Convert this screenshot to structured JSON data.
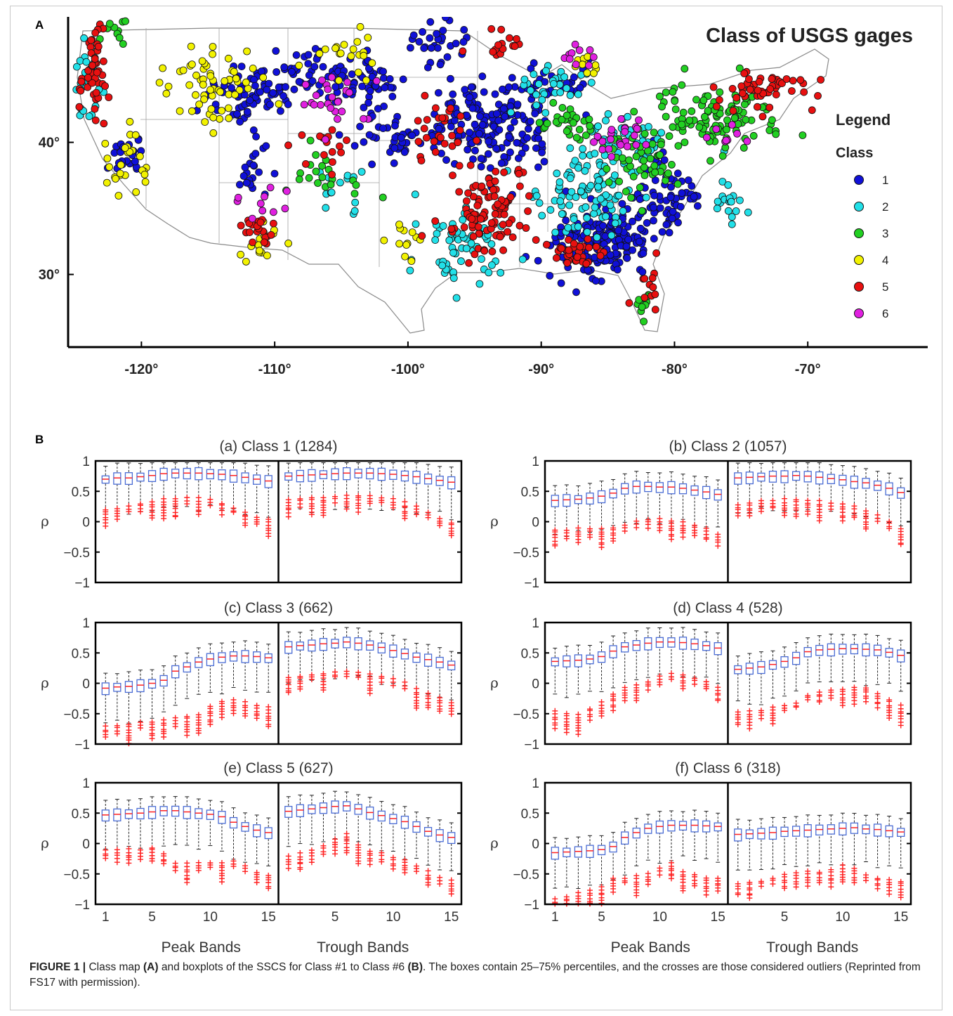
{
  "panel_a_letter": "A",
  "panel_b_letter": "B",
  "caption": {
    "label": "FIGURE 1 |",
    "part1": " Class map ",
    "bold_a": "(A)",
    "part2": " and boxplots of the SSCS for Class #1 to Class #6 ",
    "bold_b": "(B)",
    "part3": ". The boxes contain 25–75% percentiles, and the crosses are those considered outliers (Reprinted from FS17 with permission)."
  },
  "chart_data": [
    {
      "type": "scatter",
      "title": "Class of USGS gages",
      "xlabel": "",
      "ylabel": "",
      "xlim": [
        -125.5,
        -61
      ],
      "ylim": [
        24.5,
        49.5
      ],
      "x_ticks": [
        -120,
        -110,
        -100,
        -90,
        -80,
        -70
      ],
      "x_tick_labels": [
        "-120°",
        "-110°",
        "-100°",
        "-90°",
        "-80°",
        "-70°"
      ],
      "y_ticks": [
        30,
        40
      ],
      "y_tick_labels": [
        "30°",
        "40°"
      ],
      "legend": {
        "title": "Legend",
        "subtitle": "Class",
        "placement": "right",
        "entries": [
          {
            "label": "1",
            "color": "#1010d8"
          },
          {
            "label": "2",
            "color": "#22e0e8"
          },
          {
            "label": "3",
            "color": "#22d022"
          },
          {
            "label": "4",
            "color": "#f2f200"
          },
          {
            "label": "5",
            "color": "#e81010"
          },
          {
            "label": "6",
            "color": "#e020e0"
          }
        ]
      },
      "series": [
        {
          "name": "1",
          "color": "#1010d8",
          "clusters": [
            [
              -93.5,
              41.5,
              4.5,
              3.5,
              170
            ],
            [
              -85.5,
              32.5,
              4.0,
              2.5,
              170
            ],
            [
              -80.5,
              36.0,
              2.5,
              2.5,
              70
            ],
            [
              -112.0,
              43.5,
              3.0,
              2.0,
              70
            ],
            [
              -107.0,
              45.0,
              3.0,
              2.0,
              50
            ],
            [
              -102.5,
              44.0,
              2.5,
              1.7,
              40
            ],
            [
              -101.0,
              40.5,
              3.0,
              1.8,
              40
            ],
            [
              -121.0,
              39.0,
              1.2,
              1.5,
              25
            ],
            [
              -111.5,
              38.0,
              1.5,
              2.0,
              20
            ],
            [
              -97.5,
              47.5,
              2.0,
              1.5,
              30
            ],
            [
              -89.0,
              44.5,
              2.0,
              1.5,
              30
            ]
          ]
        },
        {
          "name": "2",
          "color": "#22e0e8",
          "clusters": [
            [
              -87.0,
              36.0,
              3.5,
              3.0,
              90
            ],
            [
              -96.0,
              32.0,
              3.0,
              3.0,
              60
            ],
            [
              -84.0,
              40.0,
              2.5,
              2.0,
              50
            ],
            [
              -124.0,
              44.5,
              1.0,
              3.0,
              25
            ],
            [
              -76.0,
              36.0,
              1.5,
              2.0,
              20
            ],
            [
              -89.5,
              44.0,
              3.0,
              2.0,
              30
            ],
            [
              -105.0,
              36.5,
              2.0,
              2.0,
              15
            ]
          ]
        },
        {
          "name": "3",
          "color": "#22d022",
          "clusters": [
            [
              -77.0,
              42.0,
              4.0,
              2.2,
              110
            ],
            [
              -82.5,
              39.0,
              2.5,
              2.0,
              50
            ],
            [
              -88.0,
              41.5,
              2.0,
              1.5,
              30
            ],
            [
              -106.0,
              38.0,
              2.5,
              2.5,
              20
            ],
            [
              -82.0,
              27.0,
              1.0,
              1.2,
              10
            ],
            [
              -122.0,
              48.5,
              1.0,
              1.0,
              10
            ]
          ]
        },
        {
          "name": "4",
          "color": "#f2f200",
          "clusters": [
            [
              -114.5,
              44.5,
              3.0,
              2.5,
              60
            ],
            [
              -121.0,
              38.0,
              1.5,
              2.5,
              25
            ],
            [
              -111.0,
              33.0,
              1.5,
              1.5,
              15
            ],
            [
              -105.5,
              46.5,
              2.5,
              1.5,
              20
            ],
            [
              -100.5,
              32.5,
              2.0,
              2.0,
              12
            ],
            [
              -87.0,
              46.0,
              1.5,
              1.0,
              10
            ]
          ]
        },
        {
          "name": "5",
          "color": "#e81010",
          "clusters": [
            [
              -94.0,
              35.0,
              3.0,
              3.0,
              100
            ],
            [
              -123.5,
              45.0,
              1.0,
              3.5,
              45
            ],
            [
              -73.0,
              44.0,
              3.0,
              1.5,
              50
            ],
            [
              -88.0,
              31.5,
              2.0,
              1.3,
              35
            ],
            [
              -111.0,
              33.5,
              1.3,
              1.0,
              20
            ],
            [
              -98.0,
              40.5,
              2.0,
              2.0,
              25
            ],
            [
              -82.0,
              29.0,
              1.0,
              1.5,
              12
            ],
            [
              -106.0,
              40.0,
              3.0,
              1.5,
              15
            ],
            [
              -93.0,
              47.5,
              2.0,
              1.2,
              15
            ]
          ]
        },
        {
          "name": "6",
          "color": "#e020e0",
          "clusters": [
            [
              -84.0,
              40.5,
              2.0,
              1.2,
              25
            ],
            [
              -106.0,
              43.0,
              3.0,
              2.5,
              25
            ],
            [
              -110.5,
              35.5,
              2.0,
              2.0,
              10
            ],
            [
              -87.0,
              46.5,
              1.5,
              1.0,
              10
            ],
            [
              -76.0,
              40.5,
              1.5,
              1.0,
              8
            ]
          ]
        }
      ]
    },
    {
      "type": "boxplot",
      "ylabel": "ρ",
      "ylim": [
        -1,
        1
      ],
      "y_ticks": [
        -1,
        -0.5,
        0,
        0.5,
        1
      ],
      "y_tick_labels": [
        "−1",
        "−0.5",
        "0",
        "0.5",
        "1"
      ],
      "x_tick_labels": [
        "1",
        "5",
        "10",
        "15",
        "5",
        "10",
        "15"
      ],
      "group_labels": [
        "Peak Bands",
        "Trough Bands"
      ],
      "box_color": "#4a6cd4",
      "median_color": "#ff2020",
      "outlier_color": "#ff2020",
      "whisker_color": "#222222",
      "panels": [
        {
          "title": "(a) Class 1 (1284)",
          "peak_medians": [
            0.7,
            0.72,
            0.72,
            0.74,
            0.76,
            0.79,
            0.8,
            0.8,
            0.8,
            0.79,
            0.78,
            0.76,
            0.73,
            0.7,
            0.67
          ],
          "trough_medians": [
            0.75,
            0.76,
            0.77,
            0.78,
            0.79,
            0.8,
            0.8,
            0.8,
            0.79,
            0.78,
            0.76,
            0.74,
            0.71,
            0.68,
            0.65
          ],
          "peak_outliers": [
            0.22,
            0.24,
            0.27,
            0.32,
            0.35,
            0.38,
            0.4,
            0.41,
            0.4,
            0.37,
            0.32,
            0.25,
            0.18,
            0.1,
            0.05
          ],
          "trough_outliers": [
            0.38,
            0.4,
            0.41,
            0.42,
            0.43,
            0.44,
            0.45,
            0.44,
            0.42,
            0.38,
            0.33,
            0.26,
            0.18,
            0.08,
            0.0
          ]
        },
        {
          "title": "(b) Class 2 (1057)",
          "peak_medians": [
            0.35,
            0.36,
            0.37,
            0.39,
            0.42,
            0.47,
            0.55,
            0.58,
            0.58,
            0.57,
            0.57,
            0.55,
            0.52,
            0.49,
            0.45
          ],
          "trough_medians": [
            0.72,
            0.73,
            0.74,
            0.75,
            0.75,
            0.76,
            0.75,
            0.73,
            0.71,
            0.69,
            0.66,
            0.64,
            0.6,
            0.55,
            0.48
          ],
          "peak_outliers": [
            -0.12,
            -0.12,
            -0.1,
            -0.1,
            -0.1,
            -0.08,
            -0.05,
            0.02,
            0.05,
            0.06,
            0.04,
            0.0,
            -0.03,
            -0.1,
            -0.2
          ],
          "trough_outliers": [
            0.3,
            0.33,
            0.36,
            0.37,
            0.38,
            0.38,
            0.37,
            0.35,
            0.32,
            0.3,
            0.26,
            0.2,
            0.12,
            0.03,
            -0.1
          ]
        },
        {
          "title": "(c) Class 3 (662)",
          "peak_medians": [
            -0.08,
            -0.06,
            -0.05,
            -0.03,
            0.0,
            0.05,
            0.2,
            0.27,
            0.35,
            0.4,
            0.43,
            0.45,
            0.45,
            0.44,
            0.42
          ],
          "trough_medians": [
            0.6,
            0.62,
            0.63,
            0.65,
            0.66,
            0.68,
            0.66,
            0.63,
            0.59,
            0.54,
            0.49,
            0.43,
            0.39,
            0.35,
            0.3
          ],
          "peak_outliers": [
            -0.7,
            -0.68,
            -0.66,
            -0.64,
            -0.62,
            -0.6,
            -0.55,
            -0.52,
            -0.5,
            -0.35,
            -0.28,
            -0.25,
            -0.3,
            -0.35,
            -0.38
          ],
          "trough_outliers": [
            0.12,
            0.14,
            0.16,
            0.18,
            0.2,
            0.22,
            0.2,
            0.17,
            0.13,
            0.08,
            0.02,
            -0.08,
            -0.15,
            -0.22,
            -0.3
          ]
        },
        {
          "title": "(d) Class 4 (528)",
          "peak_medians": [
            0.36,
            0.37,
            0.38,
            0.4,
            0.44,
            0.53,
            0.6,
            0.63,
            0.66,
            0.68,
            0.68,
            0.67,
            0.65,
            0.62,
            0.58
          ],
          "trough_medians": [
            0.23,
            0.25,
            0.27,
            0.31,
            0.36,
            0.42,
            0.52,
            0.55,
            0.56,
            0.57,
            0.57,
            0.56,
            0.55,
            0.51,
            0.46
          ],
          "peak_outliers": [
            -0.45,
            -0.48,
            -0.5,
            -0.4,
            -0.3,
            -0.15,
            -0.05,
            0.0,
            0.05,
            0.12,
            0.18,
            0.15,
            0.1,
            0.05,
            -0.05
          ],
          "trough_outliers": [
            -0.45,
            -0.45,
            -0.42,
            -0.38,
            -0.35,
            -0.3,
            -0.18,
            -0.12,
            -0.1,
            -0.08,
            -0.05,
            -0.05,
            -0.15,
            -0.25,
            -0.35
          ]
        },
        {
          "title": "(e) Class 5 (627)",
          "peak_medians": [
            0.47,
            0.48,
            0.49,
            0.5,
            0.52,
            0.54,
            0.54,
            0.52,
            0.5,
            0.48,
            0.44,
            0.35,
            0.28,
            0.22,
            0.18
          ],
          "trough_medians": [
            0.53,
            0.55,
            0.57,
            0.59,
            0.61,
            0.62,
            0.57,
            0.51,
            0.46,
            0.41,
            0.36,
            0.28,
            0.2,
            0.14,
            0.1
          ],
          "peak_outliers": [
            -0.1,
            -0.1,
            -0.08,
            -0.1,
            -0.05,
            -0.15,
            -0.3,
            -0.32,
            -0.3,
            -0.3,
            -0.3,
            -0.28,
            -0.35,
            -0.45,
            -0.5
          ],
          "trough_outliers": [
            -0.2,
            -0.15,
            -0.1,
            -0.02,
            0.08,
            0.18,
            0.0,
            -0.1,
            -0.15,
            -0.22,
            -0.25,
            -0.35,
            -0.45,
            -0.55,
            -0.6
          ]
        },
        {
          "title": "(f) Class 6 (318)",
          "peak_medians": [
            -0.15,
            -0.14,
            -0.13,
            -0.12,
            -0.1,
            -0.05,
            0.1,
            0.18,
            0.25,
            0.28,
            0.3,
            0.3,
            0.3,
            0.29,
            0.28
          ],
          "trough_medians": [
            0.15,
            0.16,
            0.17,
            0.18,
            0.2,
            0.21,
            0.22,
            0.23,
            0.24,
            0.25,
            0.26,
            0.24,
            0.23,
            0.21,
            0.19
          ],
          "peak_outliers": [
            -0.9,
            -0.85,
            -0.8,
            -0.75,
            -0.7,
            -0.55,
            -0.55,
            -0.52,
            -0.48,
            -0.4,
            -0.3,
            -0.45,
            -0.5,
            -0.55,
            -0.55
          ],
          "trough_outliers": [
            -0.65,
            -0.62,
            -0.6,
            -0.55,
            -0.5,
            -0.48,
            -0.45,
            -0.45,
            -0.42,
            -0.35,
            -0.4,
            -0.5,
            -0.55,
            -0.58,
            -0.6
          ]
        }
      ]
    }
  ]
}
